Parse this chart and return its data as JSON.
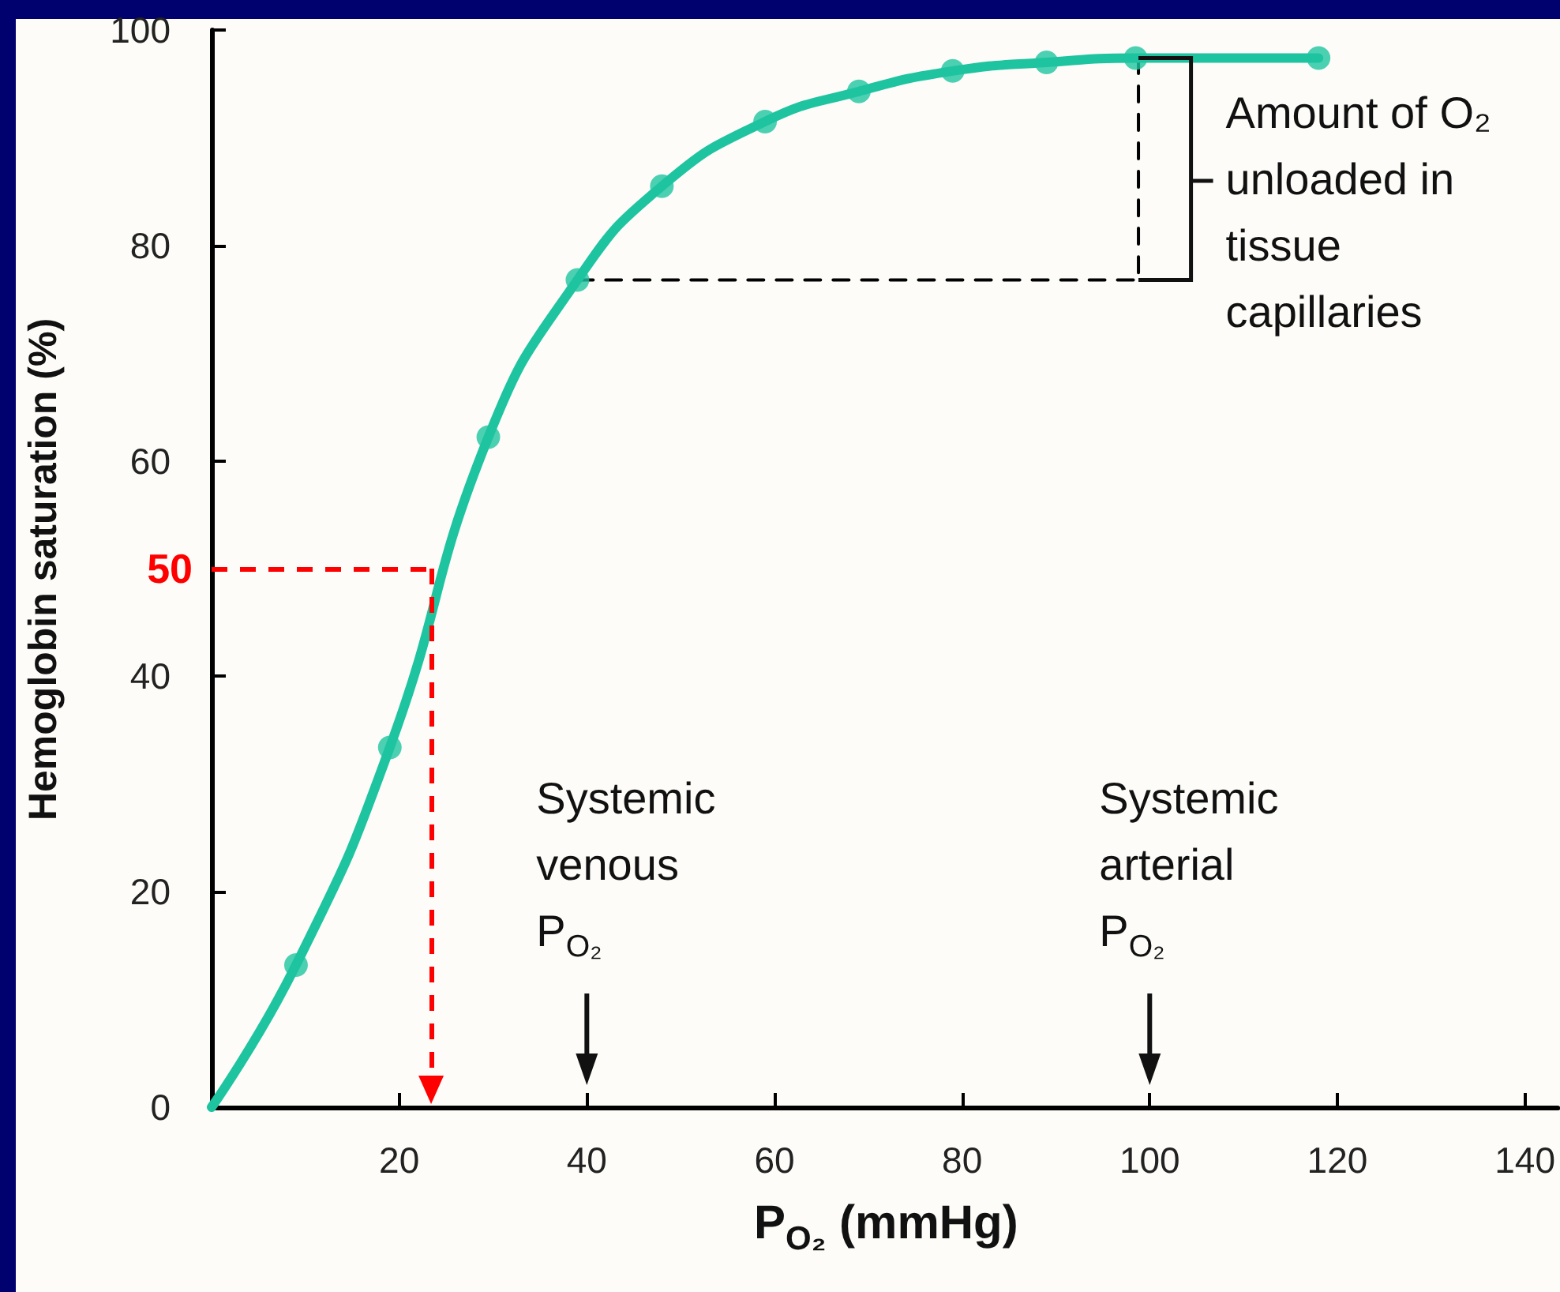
{
  "chart_data": {
    "type": "line",
    "xlabel": "P$_{O₂}$ (mmHg)",
    "ylabel": "Hemoglobin saturation (%)",
    "xlim": [
      0,
      143.5
    ],
    "ylim": [
      0,
      100
    ],
    "xticks": [
      20,
      40,
      60,
      80,
      100,
      120,
      140
    ],
    "yticks": [
      0,
      20,
      40,
      60,
      80,
      100
    ],
    "grid": false,
    "series": [
      {
        "color": "#1ec4a0",
        "marker": "none",
        "line_style": "solid",
        "x": [
          0,
          9,
          19,
          29.5,
          39,
          48,
          59,
          69,
          79,
          89,
          98.5,
          118
        ],
        "values": [
          0,
          13.2,
          33.4,
          62.2,
          76.8,
          85.5,
          91.5,
          94.3,
          96.2,
          97,
          97.4,
          97.4
        ]
      },
      {
        "type": "scatter",
        "color": "#1ec4a0",
        "marker": "circle",
        "x": [
          9,
          19,
          29.5,
          39,
          48,
          59,
          69,
          79,
          89,
          98.5,
          118
        ],
        "values": [
          13.2,
          33.4,
          62.2,
          76.8,
          85.5,
          91.5,
          94.3,
          96.2,
          97,
          97.4,
          97.4
        ]
      },
      {
        "type": "line",
        "color": "#000000",
        "marker": "none",
        "line_style": "dashed",
        "x": [
          39,
          98.8,
          98.8
        ],
        "values": [
          76.8,
          76.8,
          97.4
        ]
      }
    ],
    "ref_lines": [
      {
        "axis": "y",
        "value": 50,
        "label": "50",
        "color": "#ff0000",
        "line_style": "dashed"
      },
      {
        "axis": "x",
        "value": 23.4,
        "label": null,
        "color": "#ff0000",
        "line_style": "dashed"
      }
    ],
    "annotations": [
      "Amount of O₂\nunloaded in\ntissue\ncapillaries",
      "Systemic\nvenous\nP$_{O₂}$",
      "Systemic\narterial\nP$_{O₂}$"
    ]
  }
}
